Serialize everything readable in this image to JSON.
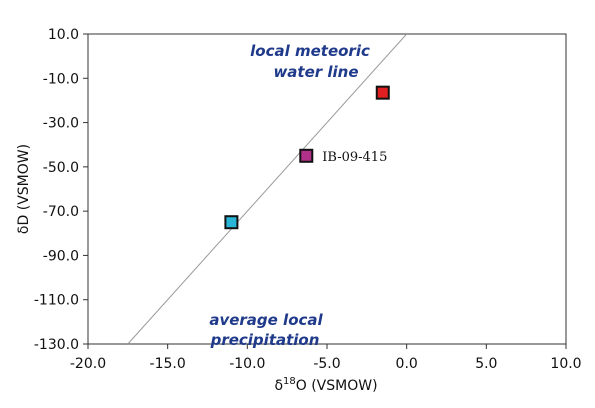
{
  "chart_data": {
    "type": "scatter",
    "xlabel_prefix": "δ",
    "xlabel_sup": "18",
    "xlabel_rest": "O (VSMOW)",
    "ylabel": "δD (VSMOW)",
    "xlim": [
      -20.0,
      10.0
    ],
    "ylim": [
      -130.0,
      10.0
    ],
    "x_ticks": [
      "-20.0",
      "-15.0",
      "-10.0",
      "-5.0",
      "0.0",
      "5.0",
      "10.0"
    ],
    "y_ticks": [
      "10.0",
      "-10.0",
      "-30.0",
      "-50.0",
      "-70.0",
      "-90.0",
      "-110.0",
      "-130.0"
    ],
    "grid": false,
    "points": [
      {
        "x": -11.0,
        "y": -75.0,
        "color": "#29b6d6",
        "label": ""
      },
      {
        "x": -6.3,
        "y": -45.0,
        "color": "#b0308a",
        "label": "IB-09-415"
      },
      {
        "x": -1.5,
        "y": -16.5,
        "color": "#e02020",
        "label": ""
      }
    ],
    "reference_line": {
      "x": [
        -18.25,
        0.0
      ],
      "y": [
        -136.0,
        10.0
      ],
      "color": "#9a9a9a"
    },
    "annotations": [
      {
        "line1": "local meteoric",
        "line2": "water line"
      },
      {
        "line1": "average local",
        "line2": "precipitation"
      }
    ]
  }
}
